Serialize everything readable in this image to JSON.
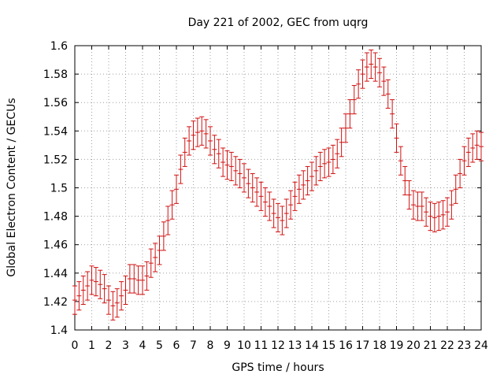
{
  "chart_data": {
    "type": "line",
    "title": "Day 221 of 2002, GEC from uqrg",
    "xlabel": "GPS time / hours",
    "ylabel": "Global Electron Content / GECUs",
    "xlim": [
      0,
      24
    ],
    "ylim": [
      1.4,
      1.6
    ],
    "xticks": [
      0,
      1,
      2,
      3,
      4,
      5,
      6,
      7,
      8,
      9,
      10,
      11,
      12,
      13,
      14,
      15,
      16,
      17,
      18,
      19,
      20,
      21,
      22,
      23,
      24
    ],
    "yticks": [
      1.4,
      1.42,
      1.44,
      1.46,
      1.48,
      1.5,
      1.52,
      1.54,
      1.56,
      1.58,
      1.6
    ],
    "grid": true,
    "legend": "none",
    "series_color": "#d01010",
    "error_half_width": 0.01,
    "series": [
      {
        "x": [
          0,
          0.25,
          0.5,
          0.75,
          1,
          1.25,
          1.5,
          1.75,
          2,
          2.25,
          2.5,
          2.75,
          3,
          3.25,
          3.5,
          3.75,
          4,
          4.25,
          4.5,
          4.75,
          5,
          5.25,
          5.5,
          5.75,
          6,
          6.25,
          6.5,
          6.75,
          7,
          7.25,
          7.5,
          7.75,
          8,
          8.25,
          8.5,
          8.75,
          9,
          9.25,
          9.5,
          9.75,
          10,
          10.25,
          10.5,
          10.75,
          11,
          11.25,
          11.5,
          11.75,
          12,
          12.25,
          12.5,
          12.75,
          13,
          13.25,
          13.5,
          13.75,
          14,
          14.25,
          14.5,
          14.75,
          15,
          15.25,
          15.5,
          15.75,
          16,
          16.25,
          16.5,
          16.75,
          17,
          17.25,
          17.5,
          17.75,
          18,
          18.25,
          18.5,
          18.75,
          19,
          19.25,
          19.5,
          19.75,
          20,
          20.25,
          20.5,
          20.75,
          21,
          21.25,
          21.5,
          21.75,
          22,
          22.25,
          22.5,
          22.75,
          23,
          23.25,
          23.5,
          23.75,
          24
        ],
        "y": [
          1.421,
          1.424,
          1.428,
          1.431,
          1.435,
          1.434,
          1.432,
          1.429,
          1.421,
          1.417,
          1.419,
          1.424,
          1.428,
          1.436,
          1.436,
          1.435,
          1.435,
          1.438,
          1.447,
          1.451,
          1.456,
          1.466,
          1.477,
          1.488,
          1.499,
          1.513,
          1.525,
          1.533,
          1.537,
          1.539,
          1.54,
          1.538,
          1.533,
          1.527,
          1.524,
          1.518,
          1.516,
          1.515,
          1.512,
          1.51,
          1.507,
          1.503,
          1.5,
          1.497,
          1.494,
          1.49,
          1.487,
          1.482,
          1.479,
          1.477,
          1.482,
          1.488,
          1.494,
          1.499,
          1.502,
          1.505,
          1.508,
          1.512,
          1.515,
          1.517,
          1.518,
          1.52,
          1.524,
          1.532,
          1.542,
          1.552,
          1.562,
          1.573,
          1.58,
          1.585,
          1.587,
          1.585,
          1.581,
          1.575,
          1.566,
          1.552,
          1.535,
          1.519,
          1.505,
          1.495,
          1.488,
          1.487,
          1.487,
          1.483,
          1.48,
          1.479,
          1.48,
          1.481,
          1.483,
          1.488,
          1.499,
          1.51,
          1.519,
          1.525,
          1.528,
          1.53,
          1.529
        ]
      }
    ]
  }
}
